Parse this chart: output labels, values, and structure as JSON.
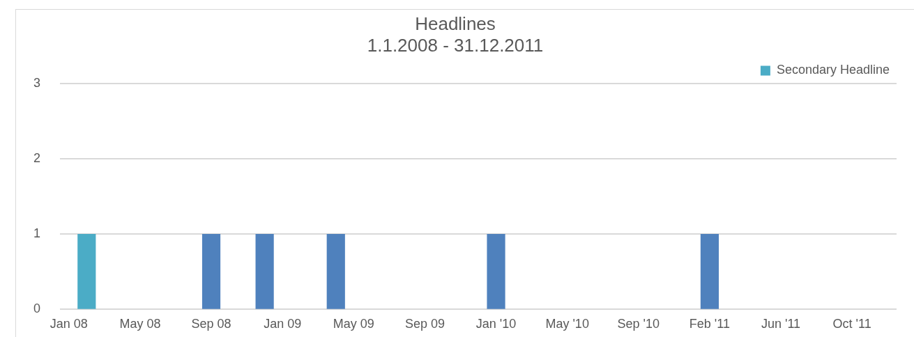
{
  "chart_data": {
    "type": "bar",
    "title": [
      "Headlines",
      "1.1.2008 - 31.12.2011"
    ],
    "categories": [
      "Jan 08",
      null,
      null,
      null,
      "May 08",
      null,
      null,
      null,
      "Sep 08",
      null,
      null,
      null,
      "Jan 09",
      null,
      null,
      null,
      "May 09",
      null,
      null,
      null,
      "Sep 09",
      null,
      null,
      null,
      "Jan '10",
      null,
      null,
      null,
      "May '10",
      null,
      null,
      null,
      "Sep '10",
      null,
      null,
      null,
      "Feb '11",
      null,
      null,
      null,
      "Jun '11",
      null,
      null,
      null,
      "Oct '11",
      null,
      null
    ],
    "series": [
      {
        "color": "#4f81bd",
        "values": [
          null,
          null,
          null,
          null,
          null,
          null,
          null,
          null,
          1,
          null,
          null,
          1,
          null,
          null,
          null,
          1,
          null,
          null,
          null,
          null,
          null,
          null,
          null,
          null,
          1,
          null,
          null,
          null,
          null,
          null,
          null,
          null,
          null,
          null,
          null,
          null,
          1,
          null,
          null,
          null,
          null,
          null,
          null,
          null,
          null,
          null,
          null
        ]
      },
      {
        "name": "Secondary Headline",
        "color": "#4bacc6",
        "values": [
          null,
          1,
          null,
          null,
          null,
          null,
          null,
          null,
          null,
          null,
          null,
          null,
          null,
          null,
          null,
          null,
          null,
          null,
          null,
          null,
          null,
          null,
          null,
          null,
          null,
          null,
          null,
          null,
          null,
          null,
          null,
          null,
          null,
          null,
          null,
          null,
          null,
          null,
          null,
          null,
          null,
          null,
          null,
          null,
          null,
          null,
          null
        ]
      }
    ],
    "stacked": true,
    "ylim": [
      0,
      3
    ],
    "yticks": [
      0,
      1,
      2,
      3
    ],
    "grid": "y",
    "legend": "top right"
  }
}
